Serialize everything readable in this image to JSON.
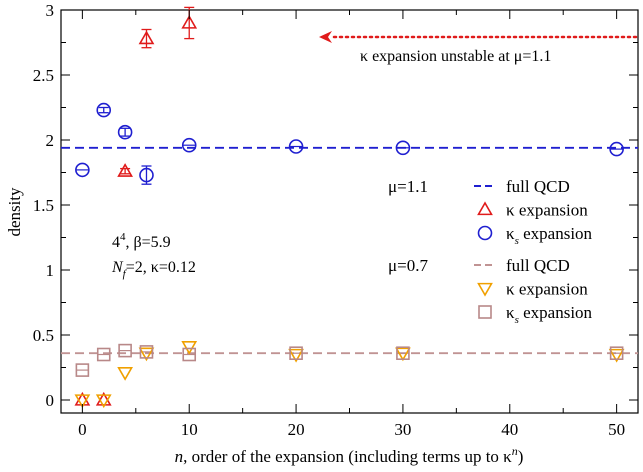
{
  "chart_data": {
    "type": "scatter",
    "title": "",
    "xlabel": "n, order of the expansion (including terms up to κ^n)",
    "xlabel_parts": {
      "var": "n",
      "text": ", order of the expansion (including terms up to κ",
      "sup": "n",
      "close": ")"
    },
    "ylabel": "density",
    "xlim": [
      -2,
      52
    ],
    "ylim": [
      -0.1,
      3.0
    ],
    "xticks": [
      0,
      10,
      20,
      30,
      40,
      50
    ],
    "yticks": [
      0,
      0.5,
      1,
      1.5,
      2,
      2.5,
      3
    ],
    "ytick_labels": [
      "0",
      "0.5",
      "1",
      "1.5",
      "2",
      "2.5",
      "3"
    ],
    "grid": false,
    "reference_lines": [
      {
        "mu": "μ=1.1",
        "label": "full QCD",
        "y": 1.94,
        "color": "#1f1fd0",
        "dash": "dashed"
      },
      {
        "mu": "μ=0.7",
        "label": "full QCD",
        "y": 0.36,
        "color": "#c09393",
        "dash": "dashed"
      }
    ],
    "series": [
      {
        "name": "κ expansion",
        "group": "μ=1.1",
        "marker": "triangle-up",
        "color": "#e01b1b",
        "points": [
          {
            "x": 0,
            "y": 0.0,
            "err": 0.0
          },
          {
            "x": 2,
            "y": 0.0,
            "err": 0.0
          },
          {
            "x": 4,
            "y": 1.76,
            "err": 0.02
          },
          {
            "x": 6,
            "y": 2.78,
            "err": 0.07
          },
          {
            "x": 10,
            "y": 2.9,
            "err": 0.12
          }
        ]
      },
      {
        "name": "κ_s expansion",
        "group": "μ=1.1",
        "marker": "circle",
        "color": "#1f1fd0",
        "points": [
          {
            "x": 0,
            "y": 1.77,
            "err": 0.01
          },
          {
            "x": 2,
            "y": 2.23,
            "err": 0.02
          },
          {
            "x": 4,
            "y": 2.06,
            "err": 0.03
          },
          {
            "x": 6,
            "y": 1.73,
            "err": 0.07
          },
          {
            "x": 10,
            "y": 1.96,
            "err": 0.01
          },
          {
            "x": 20,
            "y": 1.95,
            "err": 0.01
          },
          {
            "x": 30,
            "y": 1.94,
            "err": 0.01
          },
          {
            "x": 50,
            "y": 1.93,
            "err": 0.01
          }
        ]
      },
      {
        "name": "κ expansion",
        "group": "μ=0.7",
        "marker": "triangle-down",
        "color": "#f0a000",
        "points": [
          {
            "x": 0,
            "y": 0.0,
            "err": 0.0
          },
          {
            "x": 2,
            "y": 0.0,
            "err": 0.0
          },
          {
            "x": 4,
            "y": 0.21,
            "err": 0.01
          },
          {
            "x": 6,
            "y": 0.36,
            "err": 0.01
          },
          {
            "x": 10,
            "y": 0.41,
            "err": 0.01
          },
          {
            "x": 20,
            "y": 0.35,
            "err": 0.01
          },
          {
            "x": 30,
            "y": 0.36,
            "err": 0.01
          },
          {
            "x": 50,
            "y": 0.35,
            "err": 0.01
          }
        ]
      },
      {
        "name": "κ_s expansion",
        "group": "μ=0.7",
        "marker": "square",
        "color": "#b88888",
        "points": [
          {
            "x": 0,
            "y": 0.23,
            "err": 0.01
          },
          {
            "x": 2,
            "y": 0.35,
            "err": 0.01
          },
          {
            "x": 4,
            "y": 0.38,
            "err": 0.01
          },
          {
            "x": 6,
            "y": 0.37,
            "err": 0.01
          },
          {
            "x": 10,
            "y": 0.35,
            "err": 0.01
          },
          {
            "x": 20,
            "y": 0.36,
            "err": 0.01
          },
          {
            "x": 30,
            "y": 0.36,
            "err": 0.01
          },
          {
            "x": 50,
            "y": 0.36,
            "err": 0.01
          }
        ]
      }
    ],
    "legend": {
      "placement": "right",
      "groups": [
        {
          "label": "μ=1.1",
          "entries": [
            {
              "marker": "dash",
              "color": "#1f1fd0",
              "text": "full QCD"
            },
            {
              "marker": "triangle-up",
              "color": "#e01b1b",
              "text": "κ expansion",
              "sub": ""
            },
            {
              "marker": "circle",
              "color": "#1f1fd0",
              "text": "κ",
              "sub": "s",
              "tail": " expansion"
            }
          ]
        },
        {
          "label": "μ=0.7",
          "entries": [
            {
              "marker": "dash",
              "color": "#c09393",
              "text": "full QCD"
            },
            {
              "marker": "triangle-down",
              "color": "#f0a000",
              "text": "κ expansion",
              "sub": ""
            },
            {
              "marker": "square",
              "color": "#b88888",
              "text": "κ",
              "sub": "s",
              "tail": " expansion"
            }
          ]
        }
      ]
    },
    "annotations": {
      "lattice_line1": {
        "base": "4",
        "sup": "4",
        "rest": ", β=5.9"
      },
      "lattice_line2": {
        "var": "N",
        "sub": "f",
        "rest": "=2, κ=0.12"
      },
      "unstable": {
        "text": "κ expansion unstable at μ=1.1",
        "arrow_color": "#e01b1b"
      }
    }
  }
}
